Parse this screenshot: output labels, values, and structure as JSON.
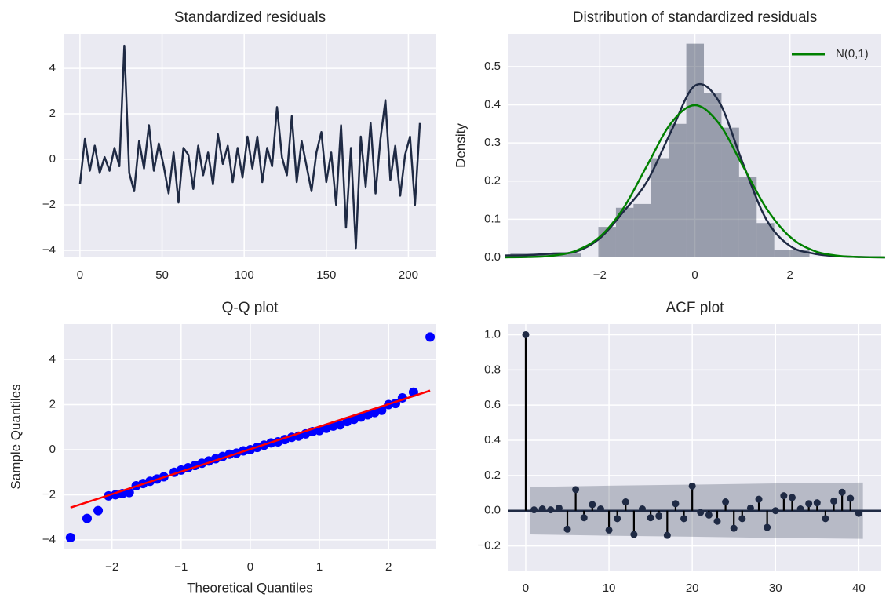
{
  "chart_data": [
    {
      "type": "line",
      "title": "Standardized residuals",
      "color": "#1f2a44",
      "grid": true,
      "x": [
        0,
        3,
        6,
        9,
        12,
        15,
        18,
        21,
        24,
        27,
        30,
        33,
        36,
        39,
        42,
        45,
        48,
        51,
        54,
        57,
        60,
        63,
        66,
        69,
        72,
        75,
        78,
        81,
        84,
        87,
        90,
        93,
        96,
        99,
        102,
        105,
        108,
        111,
        114,
        117,
        120,
        123,
        126,
        129,
        132,
        135,
        138,
        141,
        144,
        147,
        150,
        153,
        156,
        159,
        162,
        165,
        168,
        171,
        174,
        177,
        180,
        183,
        186,
        189,
        192,
        195,
        198,
        201,
        204,
        207
      ],
      "values": [
        -1.1,
        0.9,
        -0.5,
        0.6,
        -0.6,
        0.1,
        -0.5,
        0.5,
        -0.3,
        5.0,
        -0.6,
        -1.4,
        0.8,
        -0.4,
        1.5,
        -0.5,
        0.7,
        -0.3,
        -1.5,
        0.3,
        -1.9,
        0.5,
        0.2,
        -1.3,
        0.6,
        -0.7,
        0.3,
        -1.1,
        1.1,
        -0.2,
        0.6,
        -1.0,
        0.5,
        -0.8,
        1.0,
        -0.4,
        1.0,
        -1.0,
        0.5,
        -0.3,
        2.3,
        0.1,
        -0.7,
        1.9,
        -1.0,
        0.8,
        -0.3,
        -1.4,
        0.3,
        1.2,
        -1.0,
        0.3,
        -2.0,
        1.5,
        -3.0,
        0.5,
        -3.9,
        1.0,
        -1.2,
        1.6,
        -1.5,
        0.9,
        2.6,
        -0.9,
        0.6,
        -1.6,
        0.2,
        1.0,
        -2.0,
        1.6
      ],
      "xlim": [
        -10,
        217
      ],
      "xticks": [
        0,
        50,
        100,
        150,
        200
      ],
      "ylim": [
        -4.31,
        5.52
      ],
      "yticks": [
        {
          "value": -4,
          "label": "−4"
        },
        {
          "value": -2,
          "label": "−2"
        },
        0,
        2,
        4
      ]
    },
    {
      "type": "histogram",
      "title": "Distribution of standardized residuals",
      "ylabel": "Density",
      "color": "#1f2a44",
      "grid": true,
      "legend": "upper right",
      "bins": [
        -3.88,
        -3.51,
        -3.14,
        -2.77,
        -2.4,
        -2.03,
        -1.66,
        -1.29,
        -0.92,
        -0.55,
        -0.18,
        0.19,
        0.56,
        0.93,
        1.3,
        1.67,
        2.04,
        2.41
      ],
      "values": [
        0.01,
        0.01,
        0.01,
        0.01,
        0,
        0.08,
        0.13,
        0.14,
        0.26,
        0.35,
        0.56,
        0.43,
        0.34,
        0.21,
        0.09,
        0.02,
        0.02
      ],
      "line_x": [
        -4,
        -3.5,
        -3,
        -2.5,
        -2,
        -1.5,
        -1,
        -0.5,
        0,
        0.5,
        1,
        1.5,
        2,
        2.5,
        3,
        3.5,
        4
      ],
      "series": [
        {
          "color": "#1f2a44",
          "values": [
            0.005,
            0.006,
            0.01,
            0.015,
            0.05,
            0.12,
            0.2,
            0.33,
            0.45,
            0.41,
            0.25,
            0.1,
            0.03,
            0.01,
            0.003,
            0.001,
            0
          ]
        },
        {
          "name": "N(0,1)",
          "color": "#008000",
          "values": [
            0.0001,
            0.0009,
            0.0044,
            0.0175,
            0.054,
            0.1295,
            0.242,
            0.352,
            0.399,
            0.352,
            0.242,
            0.1295,
            0.054,
            0.0175,
            0.0044,
            0.0009,
            0.0001
          ]
        }
      ],
      "xlim": [
        -3.92,
        3.92
      ],
      "xticks": [
        {
          "value": -2,
          "label": "−2"
        },
        0,
        2
      ],
      "ylim": [
        0,
        0.586
      ],
      "yticks": [
        {
          "value": 0,
          "label": "0.0"
        },
        0.1,
        0.2,
        0.3,
        0.4,
        0.5
      ]
    },
    {
      "type": "scatter",
      "title": "Q-Q plot",
      "xlabel": "Theoretical Quantiles",
      "ylabel": "Sample Quantiles",
      "color": "#0000ff",
      "grid": true,
      "x": [
        -2.6,
        -2.36,
        -2.2,
        -2.05,
        -1.95,
        -1.85,
        -1.75,
        -1.65,
        -1.55,
        -1.45,
        -1.35,
        -1.25,
        -1.1,
        -1.0,
        -0.9,
        -0.8,
        -0.7,
        -0.6,
        -0.5,
        -0.4,
        -0.3,
        -0.2,
        -0.1,
        0,
        0.1,
        0.2,
        0.3,
        0.4,
        0.5,
        0.6,
        0.7,
        0.8,
        0.9,
        1.0,
        1.1,
        1.2,
        1.3,
        1.4,
        1.5,
        1.6,
        1.7,
        1.8,
        1.9,
        2.0,
        2.1,
        2.2,
        2.36,
        2.6
      ],
      "values": [
        -3.9,
        -3.05,
        -2.7,
        -2.05,
        -2.0,
        -1.95,
        -1.9,
        -1.6,
        -1.5,
        -1.4,
        -1.3,
        -1.2,
        -1.0,
        -0.9,
        -0.8,
        -0.7,
        -0.6,
        -0.5,
        -0.4,
        -0.3,
        -0.2,
        -0.15,
        -0.05,
        0.0,
        0.1,
        0.2,
        0.3,
        0.35,
        0.45,
        0.55,
        0.6,
        0.7,
        0.8,
        0.85,
        0.95,
        1.05,
        1.1,
        1.25,
        1.35,
        1.45,
        1.55,
        1.65,
        1.75,
        2.0,
        2.05,
        2.3,
        2.55,
        5.0
      ],
      "fit_line": {
        "color": "#ff0000",
        "x": [
          -2.6,
          2.6
        ],
        "values": [
          -2.57,
          2.62
        ]
      },
      "xlim": [
        -2.7,
        2.69
      ],
      "xticks": [
        {
          "value": -2,
          "label": "−2"
        },
        {
          "value": -1,
          "label": "−1"
        },
        0,
        1,
        2
      ],
      "ylim": [
        -4.42,
        5.57
      ],
      "yticks": [
        {
          "value": -4,
          "label": "−4"
        },
        {
          "value": -2,
          "label": "−2"
        },
        0,
        2,
        4
      ]
    },
    {
      "type": "stem",
      "title": "ACF plot",
      "color": "#1f2a44",
      "grid": true,
      "x": [
        0,
        1,
        2,
        3,
        4,
        5,
        6,
        7,
        8,
        9,
        10,
        11,
        12,
        13,
        14,
        15,
        16,
        17,
        18,
        19,
        20,
        21,
        22,
        23,
        24,
        25,
        26,
        27,
        28,
        29,
        30,
        31,
        32,
        33,
        34,
        35,
        36,
        37,
        38,
        39,
        40
      ],
      "values": [
        1.0,
        0.005,
        0.01,
        0.005,
        0.015,
        -0.105,
        0.12,
        -0.04,
        0.035,
        0.01,
        -0.11,
        -0.045,
        0.05,
        -0.135,
        0.01,
        -0.04,
        -0.03,
        -0.14,
        0.04,
        -0.045,
        0.14,
        -0.01,
        -0.025,
        -0.06,
        0.05,
        -0.1,
        -0.045,
        0.015,
        0.065,
        -0.095,
        0.0,
        0.085,
        0.075,
        0.01,
        0.04,
        0.045,
        -0.045,
        0.055,
        0.105,
        0.07,
        -0.015
      ],
      "confidence_band": {
        "x": [
          0.5,
          10,
          20,
          30,
          40.5
        ],
        "upper": [
          0.135,
          0.142,
          0.148,
          0.155,
          0.16
        ],
        "lower": [
          -0.135,
          -0.142,
          -0.148,
          -0.155,
          -0.16
        ]
      },
      "xlim": [
        -2.07,
        42.7
      ],
      "xticks": [
        0,
        10,
        20,
        30,
        40
      ],
      "ylim": [
        -0.34,
        1.06
      ],
      "yticks": [
        {
          "value": -0.2,
          "label": "−0.2"
        },
        {
          "value": 0,
          "label": "0.0"
        },
        0.2,
        0.4,
        0.6,
        0.8,
        {
          "value": 1,
          "label": "1.0"
        }
      ]
    }
  ]
}
